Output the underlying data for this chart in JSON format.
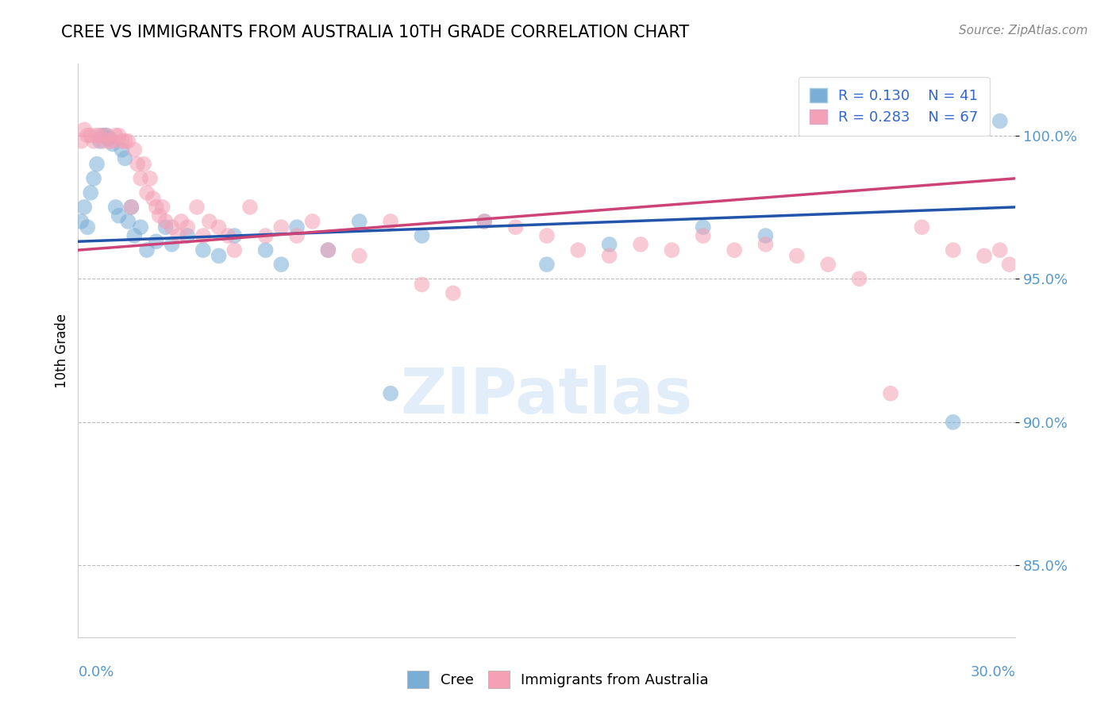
{
  "title": "CREE VS IMMIGRANTS FROM AUSTRALIA 10TH GRADE CORRELATION CHART",
  "source": "Source: ZipAtlas.com",
  "ylabel": "10th Grade",
  "watermark": "ZIPatlas",
  "blue_R": 0.13,
  "blue_N": 41,
  "pink_R": 0.283,
  "pink_N": 67,
  "blue_color": "#7aaed6",
  "pink_color": "#f4a0b5",
  "blue_line_color": "#2255aa",
  "pink_line_color": "#cc4477",
  "legend_blue_label": "Cree",
  "legend_pink_label": "Immigrants from Australia",
  "xmin": 0.0,
  "xmax": 0.3,
  "ymin": 0.825,
  "ymax": 1.025,
  "yticks": [
    0.85,
    0.9,
    0.95,
    1.0
  ],
  "ytick_labels": [
    "85.0%",
    "90.0%",
    "95.0%",
    "100.0%"
  ],
  "blue_trend_x0": 0.0,
  "blue_trend_y0": 0.963,
  "blue_trend_x1": 0.3,
  "blue_trend_y1": 0.975,
  "pink_trend_x0": 0.0,
  "pink_trend_y0": 0.96,
  "pink_trend_x1": 0.3,
  "pink_trend_y1": 0.985,
  "blue_scatter_x": [
    0.001,
    0.002,
    0.003,
    0.004,
    0.005,
    0.006,
    0.007,
    0.008,
    0.009,
    0.01,
    0.011,
    0.012,
    0.013,
    0.014,
    0.015,
    0.016,
    0.017,
    0.018,
    0.02,
    0.022,
    0.025,
    0.028,
    0.03,
    0.035,
    0.04,
    0.045,
    0.05,
    0.06,
    0.065,
    0.07,
    0.08,
    0.09,
    0.1,
    0.11,
    0.13,
    0.15,
    0.17,
    0.2,
    0.22,
    0.28,
    0.295
  ],
  "blue_scatter_y": [
    0.97,
    0.975,
    0.968,
    0.98,
    0.985,
    0.99,
    0.998,
    1.0,
    1.0,
    0.999,
    0.997,
    0.975,
    0.972,
    0.995,
    0.992,
    0.97,
    0.975,
    0.965,
    0.968,
    0.96,
    0.963,
    0.968,
    0.962,
    0.965,
    0.96,
    0.958,
    0.965,
    0.96,
    0.955,
    0.968,
    0.96,
    0.97,
    0.91,
    0.965,
    0.97,
    0.955,
    0.962,
    0.968,
    0.965,
    0.9,
    1.005
  ],
  "pink_scatter_x": [
    0.001,
    0.002,
    0.003,
    0.004,
    0.005,
    0.006,
    0.007,
    0.008,
    0.009,
    0.01,
    0.011,
    0.012,
    0.013,
    0.014,
    0.015,
    0.016,
    0.017,
    0.018,
    0.019,
    0.02,
    0.021,
    0.022,
    0.023,
    0.024,
    0.025,
    0.026,
    0.027,
    0.028,
    0.03,
    0.032,
    0.033,
    0.035,
    0.038,
    0.04,
    0.042,
    0.045,
    0.048,
    0.05,
    0.055,
    0.06,
    0.065,
    0.07,
    0.075,
    0.08,
    0.09,
    0.1,
    0.11,
    0.12,
    0.13,
    0.14,
    0.15,
    0.16,
    0.17,
    0.18,
    0.19,
    0.2,
    0.21,
    0.22,
    0.23,
    0.24,
    0.25,
    0.26,
    0.27,
    0.28,
    0.29,
    0.295,
    0.298
  ],
  "pink_scatter_y": [
    0.998,
    1.002,
    1.0,
    1.0,
    0.998,
    1.0,
    1.0,
    0.998,
    1.0,
    0.998,
    0.998,
    1.0,
    1.0,
    0.998,
    0.998,
    0.998,
    0.975,
    0.995,
    0.99,
    0.985,
    0.99,
    0.98,
    0.985,
    0.978,
    0.975,
    0.972,
    0.975,
    0.97,
    0.968,
    0.965,
    0.97,
    0.968,
    0.975,
    0.965,
    0.97,
    0.968,
    0.965,
    0.96,
    0.975,
    0.965,
    0.968,
    0.965,
    0.97,
    0.96,
    0.958,
    0.97,
    0.948,
    0.945,
    0.97,
    0.968,
    0.965,
    0.96,
    0.958,
    0.962,
    0.96,
    0.965,
    0.96,
    0.962,
    0.958,
    0.955,
    0.95,
    0.91,
    0.968,
    0.96,
    0.958,
    0.96,
    0.955
  ]
}
